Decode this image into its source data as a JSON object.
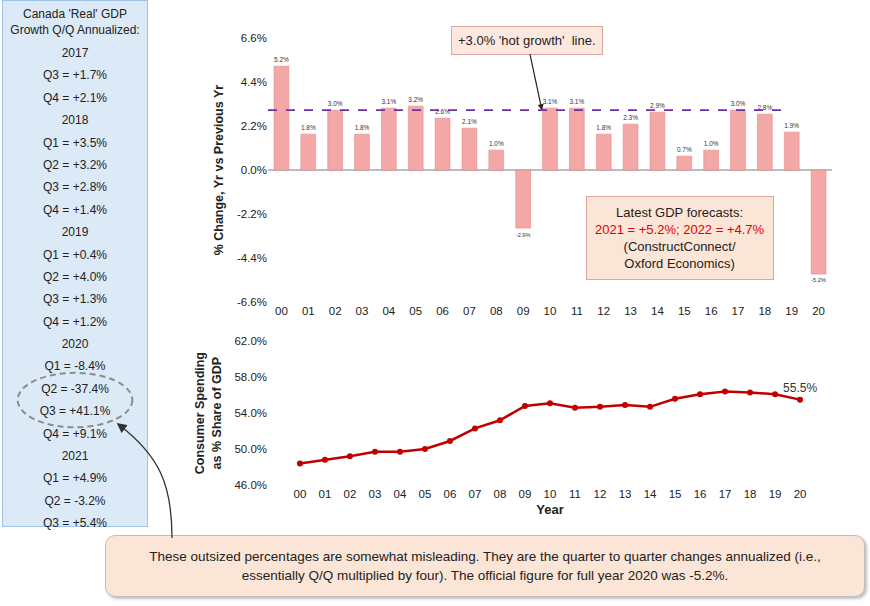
{
  "sidebar": {
    "heading": "Canada 'Real' GDP Growth Q/Q Annualized:",
    "groups": [
      {
        "year": "2017",
        "rows": [
          "Q3 = +1.7%",
          "Q4 = +2.1%"
        ]
      },
      {
        "year": "2018",
        "rows": [
          "Q1 = +3.5%",
          "Q2 = +3.2%",
          "Q3 = +2.8%",
          "Q4 = +1.4%"
        ]
      },
      {
        "year": "2019",
        "rows": [
          "Q1 = +0.4%",
          "Q2 = +4.0%",
          "Q3 = +1.3%",
          "Q4 = +1.2%"
        ]
      },
      {
        "year": "2020",
        "rows": [
          "Q1 = -8.4%",
          "Q2 = -37.4%",
          "Q3 = +41.1%",
          "Q4 = +9.1%"
        ],
        "circled": [
          "Q2 = -37.4%",
          "Q3 = +41.1%"
        ]
      },
      {
        "year": "2021",
        "rows": [
          "Q1 = +4.9%",
          "Q2 = -3.2%",
          "Q3 = +5.4%"
        ]
      }
    ]
  },
  "note": "These outsized percentages are somewhat misleading. They are the quarter to quarter changes annualized (i.e., essentially Q/Q multiplied by four). The official figure for full year 2020 was -5.2%.",
  "chart_data": [
    {
      "type": "bar",
      "categories": [
        "00",
        "01",
        "02",
        "03",
        "04",
        "05",
        "06",
        "07",
        "08",
        "09",
        "10",
        "11",
        "12",
        "13",
        "14",
        "15",
        "16",
        "17",
        "18",
        "19",
        "20"
      ],
      "values": [
        5.2,
        1.8,
        3.0,
        1.8,
        3.1,
        3.2,
        2.6,
        2.1,
        1.0,
        -2.9,
        3.1,
        3.1,
        1.8,
        2.3,
        2.9,
        0.7,
        1.0,
        3.0,
        2.8,
        1.9,
        -5.2
      ],
      "value_labels": [
        "5.2%",
        "1.8%",
        "3.0%",
        "1.8%",
        "3.1%",
        "3.2%",
        "2.6%",
        "2.1%",
        "1.0%",
        "-2.9%",
        "3.1%",
        "3.1%",
        "1.8%",
        "2.3%",
        "2.9%",
        "0.7%",
        "1.0%",
        "3.0%",
        "2.8%",
        "1.9%",
        "-5.2%"
      ],
      "data_labels": true,
      "color": "#f4a7a7",
      "y_label": "% Change, Yr vs Previous Yr",
      "ylim": [
        -6.6,
        6.6
      ],
      "yticks": [
        {
          "value": -6.6,
          "label": "-6.6%"
        },
        {
          "value": -4.4,
          "label": "-4.4%"
        },
        {
          "value": -2.2,
          "label": "-2.2%"
        },
        {
          "value": 0,
          "label": "0.0%"
        },
        {
          "value": 2.2,
          "label": "2.2%"
        },
        {
          "value": 4.4,
          "label": "4.4%"
        },
        {
          "value": 6.6,
          "label": "6.6%"
        }
      ],
      "grid": false,
      "reference_line": {
        "value": 3.0,
        "label": "+3.0% 'hot growth'  line.",
        "color": "#7030a0",
        "line_style": "dash"
      },
      "forecast_box": {
        "title": "Latest GDP forecasts:",
        "text": "2021 = +5.2%; 2022 = +4.7%",
        "color": "#e00000",
        "source": [
          "(ConstructConnect/",
          "Oxford Economics)"
        ]
      }
    },
    {
      "type": "line",
      "categories": [
        "00",
        "01",
        "02",
        "03",
        "04",
        "05",
        "06",
        "07",
        "08",
        "09",
        "10",
        "11",
        "12",
        "13",
        "14",
        "15",
        "16",
        "17",
        "18",
        "19",
        "20"
      ],
      "values": [
        48.4,
        48.8,
        49.2,
        49.7,
        49.7,
        50.0,
        50.9,
        52.3,
        53.2,
        54.8,
        55.1,
        54.6,
        54.7,
        54.9,
        54.7,
        55.6,
        56.1,
        56.4,
        56.3,
        56.1,
        55.5
      ],
      "value_labels": [
        null,
        null,
        null,
        null,
        null,
        null,
        null,
        null,
        null,
        null,
        null,
        null,
        null,
        null,
        null,
        null,
        null,
        null,
        null,
        null,
        "55.5%"
      ],
      "color": "#c00000",
      "marker": "circle",
      "line_style": "solid",
      "x_label": "Year",
      "y_label": [
        "Consumer Spending",
        "as % Share of GDP"
      ],
      "ylim": [
        46,
        62
      ],
      "yticks": [
        {
          "value": 46,
          "label": "46.0%"
        },
        {
          "value": 50,
          "label": "50.0%"
        },
        {
          "value": 54,
          "label": "54.0%"
        },
        {
          "value": 58,
          "label": "58.0%"
        },
        {
          "value": 62,
          "label": "62.0%"
        }
      ],
      "grid": false
    }
  ]
}
